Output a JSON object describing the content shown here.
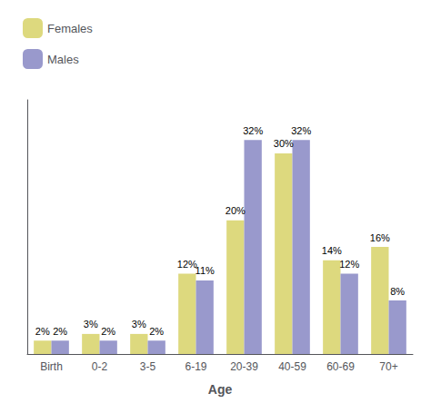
{
  "chart_data": {
    "type": "bar",
    "xlabel": "Age",
    "categories": [
      "Birth",
      "0-2",
      "3-5",
      "6-19",
      "20-39",
      "40-59",
      "60-69",
      "70+"
    ],
    "series": [
      {
        "name": "Females",
        "color": "#ddd97e",
        "values": [
          2,
          3,
          3,
          12,
          20,
          30,
          14,
          16
        ],
        "value_labels": [
          "2%",
          "3%",
          "3%",
          "12%",
          "20%",
          "30%",
          "14%",
          "16%"
        ]
      },
      {
        "name": "Males",
        "color": "#9999cc",
        "values": [
          2,
          2,
          2,
          11,
          32,
          32,
          12,
          8
        ],
        "value_labels": [
          "2%",
          "2%",
          "2%",
          "11%",
          "32%",
          "32%",
          "12%",
          "8%"
        ]
      }
    ],
    "ylim": [
      0,
      38
    ],
    "yticks": [],
    "tick_labels": "x",
    "data_labels": true,
    "legend": "upper left",
    "grid": false
  }
}
